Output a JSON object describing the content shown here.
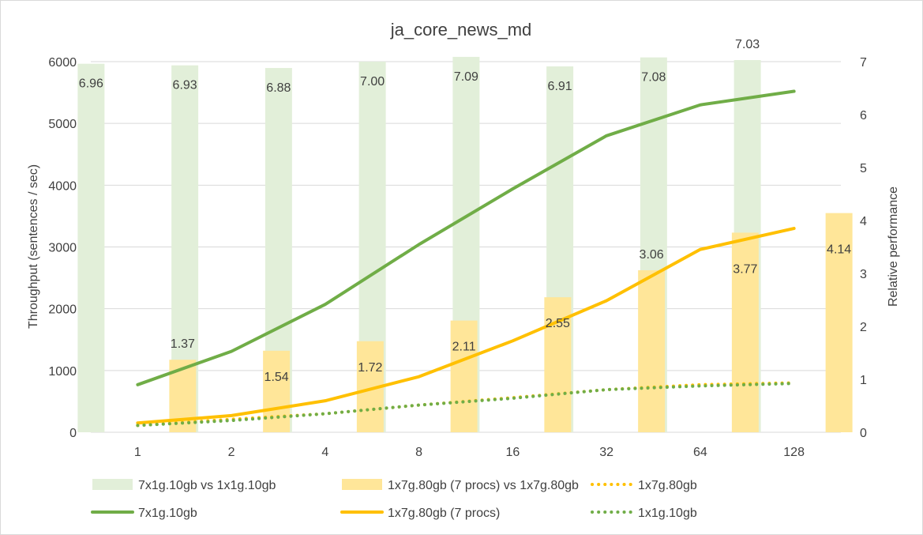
{
  "chart_data": {
    "type": "bar",
    "title": "ja_core_news_md",
    "ylabel": "Throughput (sentences / sec)",
    "y2label": "Relative performance",
    "categories": [
      "1",
      "2",
      "4",
      "8",
      "16",
      "32",
      "64",
      "128"
    ],
    "ylim": [
      0,
      6000
    ],
    "yticks": [
      0,
      1000,
      2000,
      3000,
      4000,
      5000,
      6000
    ],
    "y2lim": [
      0,
      7
    ],
    "y2ticks": [
      0,
      1,
      2,
      3,
      4,
      5,
      6,
      7
    ],
    "grid": true,
    "legend_position": "bottom",
    "series": [
      {
        "name": "7x1g.10gb vs 1x1g.10gb",
        "kind": "bar",
        "axis": "right",
        "color": "#e2efd9",
        "values": [
          6.96,
          6.93,
          6.88,
          7.0,
          7.09,
          6.91,
          7.08,
          7.03
        ],
        "labels": [
          "6.96",
          "6.93",
          "6.88",
          "7.00",
          "7.09",
          "6.91",
          "7.08",
          "7.03"
        ]
      },
      {
        "name": "1x7g.80gb (7 procs) vs 1x7g.80gb",
        "kind": "bar",
        "axis": "right",
        "color": "#ffe699",
        "values": [
          1.37,
          1.54,
          1.72,
          2.11,
          2.55,
          3.06,
          3.77,
          4.14
        ],
        "labels": [
          "1.37",
          "1.54",
          "1.72",
          "2.11",
          "2.55",
          "3.06",
          "3.77",
          "4.14"
        ]
      },
      {
        "name": "1x7g.80gb",
        "kind": "line",
        "style": "dotted",
        "axis": "left",
        "color": "#ffc000",
        "values": [
          110,
          210,
          300,
          440,
          560,
          690,
          770,
          800
        ]
      },
      {
        "name": "7x1g.10gb",
        "kind": "line",
        "style": "solid",
        "axis": "left",
        "color": "#70ad47",
        "values": [
          770,
          1310,
          2070,
          3040,
          3940,
          4800,
          5300,
          5520
        ]
      },
      {
        "name": "1x7g.80gb (7 procs)",
        "kind": "line",
        "style": "solid",
        "axis": "left",
        "color": "#ffc000",
        "values": [
          150,
          270,
          510,
          900,
          1480,
          2130,
          2960,
          3300
        ]
      },
      {
        "name": "1x1g.10gb",
        "kind": "line",
        "style": "dotted",
        "axis": "left",
        "color": "#70ad47",
        "values": [
          110,
          190,
          300,
          440,
          550,
          690,
          750,
          790
        ]
      }
    ]
  }
}
